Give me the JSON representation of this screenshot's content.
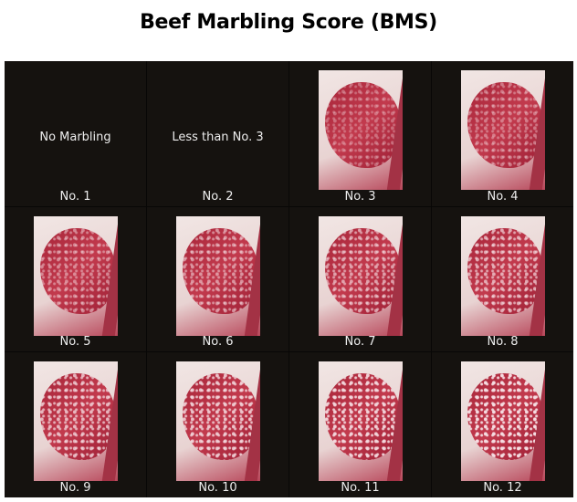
{
  "title": "Beef Marbling Score (BMS)",
  "cells": [
    {
      "label": "No. 1",
      "description": "No Marbling",
      "marbling": 0
    },
    {
      "label": "No. 2",
      "description": "Less than No. 3",
      "marbling": 0
    },
    {
      "label": "No. 3",
      "marbling": 0.35
    },
    {
      "label": "No. 4",
      "marbling": 0.42
    },
    {
      "label": "No. 5",
      "marbling": 0.5
    },
    {
      "label": "No. 6",
      "marbling": 0.57
    },
    {
      "label": "No. 7",
      "marbling": 0.64
    },
    {
      "label": "No. 8",
      "marbling": 0.7
    },
    {
      "label": "No. 9",
      "marbling": 0.77
    },
    {
      "label": "No. 10",
      "marbling": 0.84
    },
    {
      "label": "No. 11",
      "marbling": 0.92
    },
    {
      "label": "No. 12",
      "marbling": 1.0
    }
  ],
  "colors": {
    "background": "#15120f",
    "text": "#eeeeee",
    "meat": "#b3304a",
    "fat": "#f1e6e4"
  }
}
